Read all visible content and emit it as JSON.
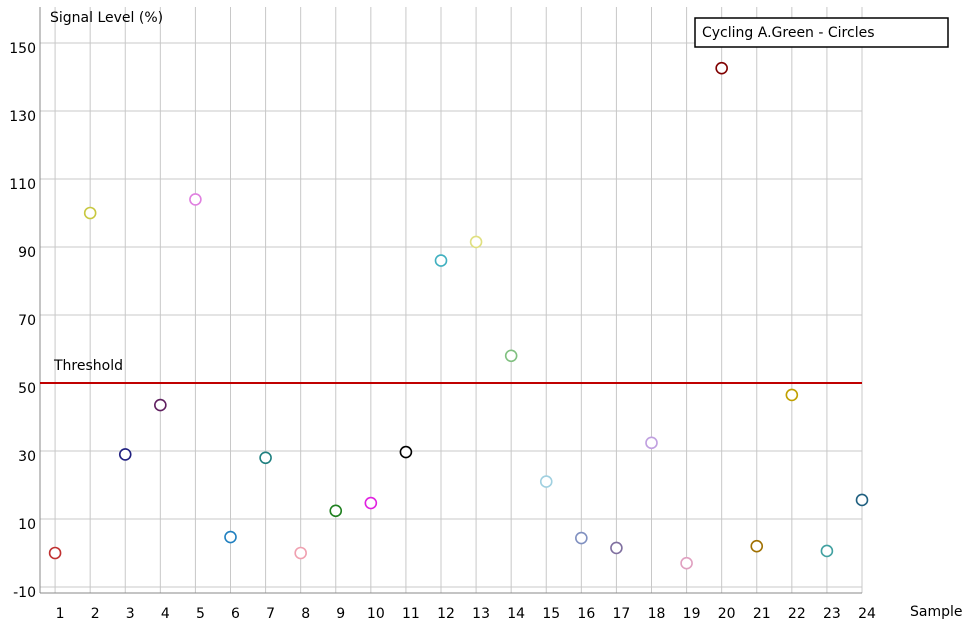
{
  "chart_data": {
    "type": "scatter",
    "y_label": "Signal Level (%)",
    "x_label": "Sample",
    "legend": "Cycling A.Green - Circles",
    "legend_position": "upper right",
    "x": [
      1,
      2,
      3,
      4,
      5,
      6,
      7,
      8,
      9,
      10,
      11,
      12,
      13,
      14,
      15,
      16,
      17,
      18,
      19,
      20,
      21,
      22,
      23,
      24
    ],
    "values": [
      0,
      100,
      29,
      43.5,
      104,
      4.7,
      28,
      0,
      12.4,
      14.7,
      29.7,
      86,
      91.5,
      58,
      21,
      4.4,
      1.5,
      32.4,
      -3,
      142.6,
      2,
      46.5,
      0.6,
      15.6
    ],
    "colors": [
      "#c03030",
      "#c8c840",
      "#202080",
      "#602060",
      "#e080e0",
      "#2080c0",
      "#208080",
      "#f0a0b0",
      "#208020",
      "#e020e0",
      "#000000",
      "#40b0c0",
      "#e0e080",
      "#80c080",
      "#a0d0e0",
      "#8090c0",
      "#8070a0",
      "#c0a0e0",
      "#e0a0c0",
      "#800000",
      "#a07000",
      "#c0a000",
      "#40a0a0",
      "#206080"
    ],
    "xlim": [
      0.57,
      24
    ],
    "xticks": [
      1,
      2,
      3,
      4,
      5,
      6,
      7,
      8,
      9,
      10,
      11,
      12,
      13,
      14,
      15,
      16,
      17,
      18,
      19,
      20,
      21,
      22,
      23,
      24
    ],
    "ylim": [
      -10,
      160
    ],
    "yticks": [
      -10,
      10,
      30,
      50,
      70,
      90,
      110,
      130,
      150
    ],
    "grid": true,
    "threshold": {
      "value": 50,
      "label": "Threshold",
      "color": "#c00000"
    }
  }
}
